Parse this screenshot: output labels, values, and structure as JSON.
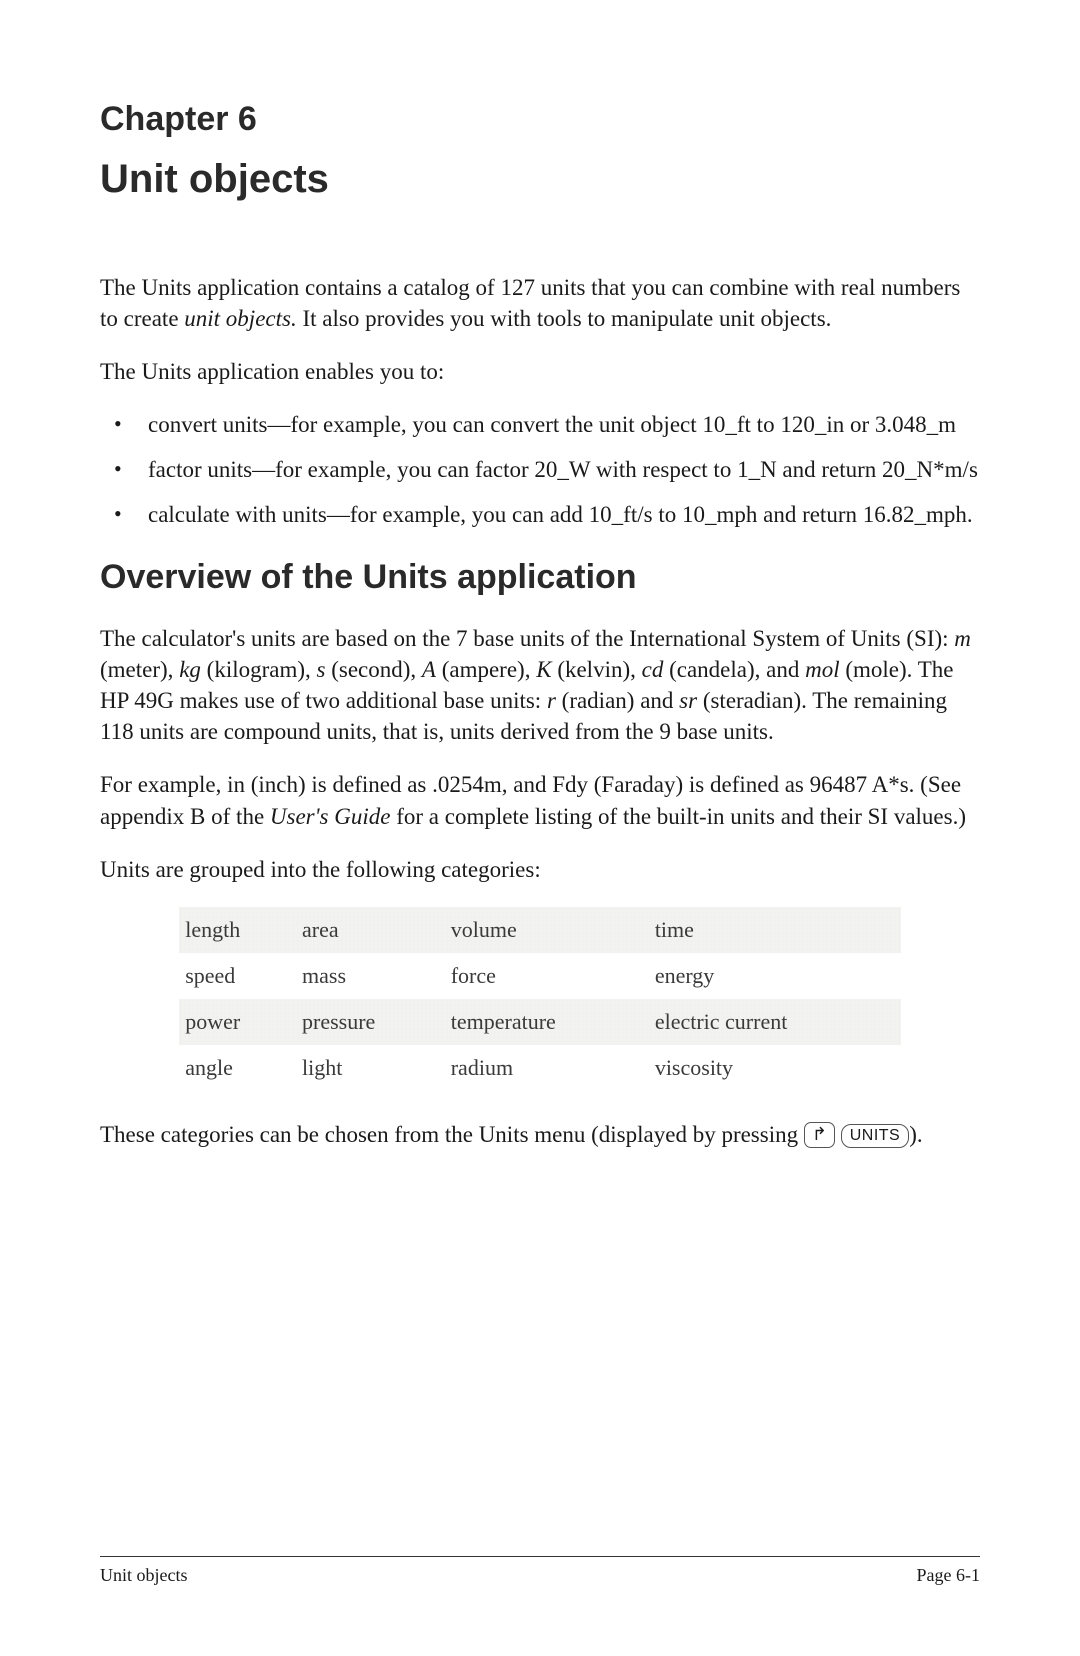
{
  "chapter_label": "Chapter 6",
  "chapter_title": "Unit objects",
  "intro_text_1a": "The Units application contains a catalog of 127 units that you can combine with real numbers to create ",
  "intro_text_1b_italic": "unit objects.",
  "intro_text_1c": " It also provides you with tools to manipulate unit objects.",
  "intro_text_2": "The Units application enables you to:",
  "bullets": [
    "convert units—for example, you can convert the unit object 10_ft to 120_in or 3.048_m",
    "factor units—for example, you can factor 20_W with respect to 1_N and return 20_N*m/s",
    "calculate with units—for example, you can add 10_ft/s to 10_mph and return 16.82_mph."
  ],
  "section_heading": "Overview of the Units application",
  "overview_p1": {
    "a": "The calculator's units are based on the 7 base units of the International System of Units (SI): ",
    "m": "m",
    "m_after": " (meter), ",
    "kg": "kg",
    "kg_after": " (kilogram), ",
    "s": "s",
    "s_after": " (second), ",
    "A": "A",
    "A_after": " (ampere), ",
    "K": "K",
    "K_after": " (kelvin), ",
    "cd": "cd",
    "cd_after": " (candela), and ",
    "mol": "mol",
    "mol_after": " (mole). The HP 49G makes use of two additional base units: ",
    "r": "r",
    "r_after": " (radian) and ",
    "sr": "sr",
    "sr_after": " (steradian). The remaining 118 units are compound units, that is, units derived from the 9 base units."
  },
  "overview_p2": {
    "a": "For example, in (inch) is defined as .0254m, and Fdy (Faraday) is defined as 96487 A*s. (See appendix B of the ",
    "ug": "User's Guide",
    "b": " for a complete listing of the built-in units and their SI values.)"
  },
  "categories_intro": "Units are grouped into the following categories:",
  "categories": {
    "rows": [
      {
        "shaded": true,
        "cells": [
          "length",
          "area",
          "volume",
          "time"
        ]
      },
      {
        "shaded": false,
        "cells": [
          "speed",
          "mass",
          "force",
          "energy"
        ]
      },
      {
        "shaded": true,
        "cells": [
          "power",
          "pressure",
          "temperature",
          "electric current"
        ]
      },
      {
        "shaded": false,
        "cells": [
          "angle",
          "light",
          "radium",
          "viscosity"
        ]
      }
    ]
  },
  "closing": {
    "a": "These categories can be chosen from the Units menu (displayed by pressing ",
    "key_shift_glyph": "↱",
    "key_units": "UNITS",
    "b": ")."
  },
  "footer_left": "Unit objects",
  "footer_right": "Page 6-1"
}
